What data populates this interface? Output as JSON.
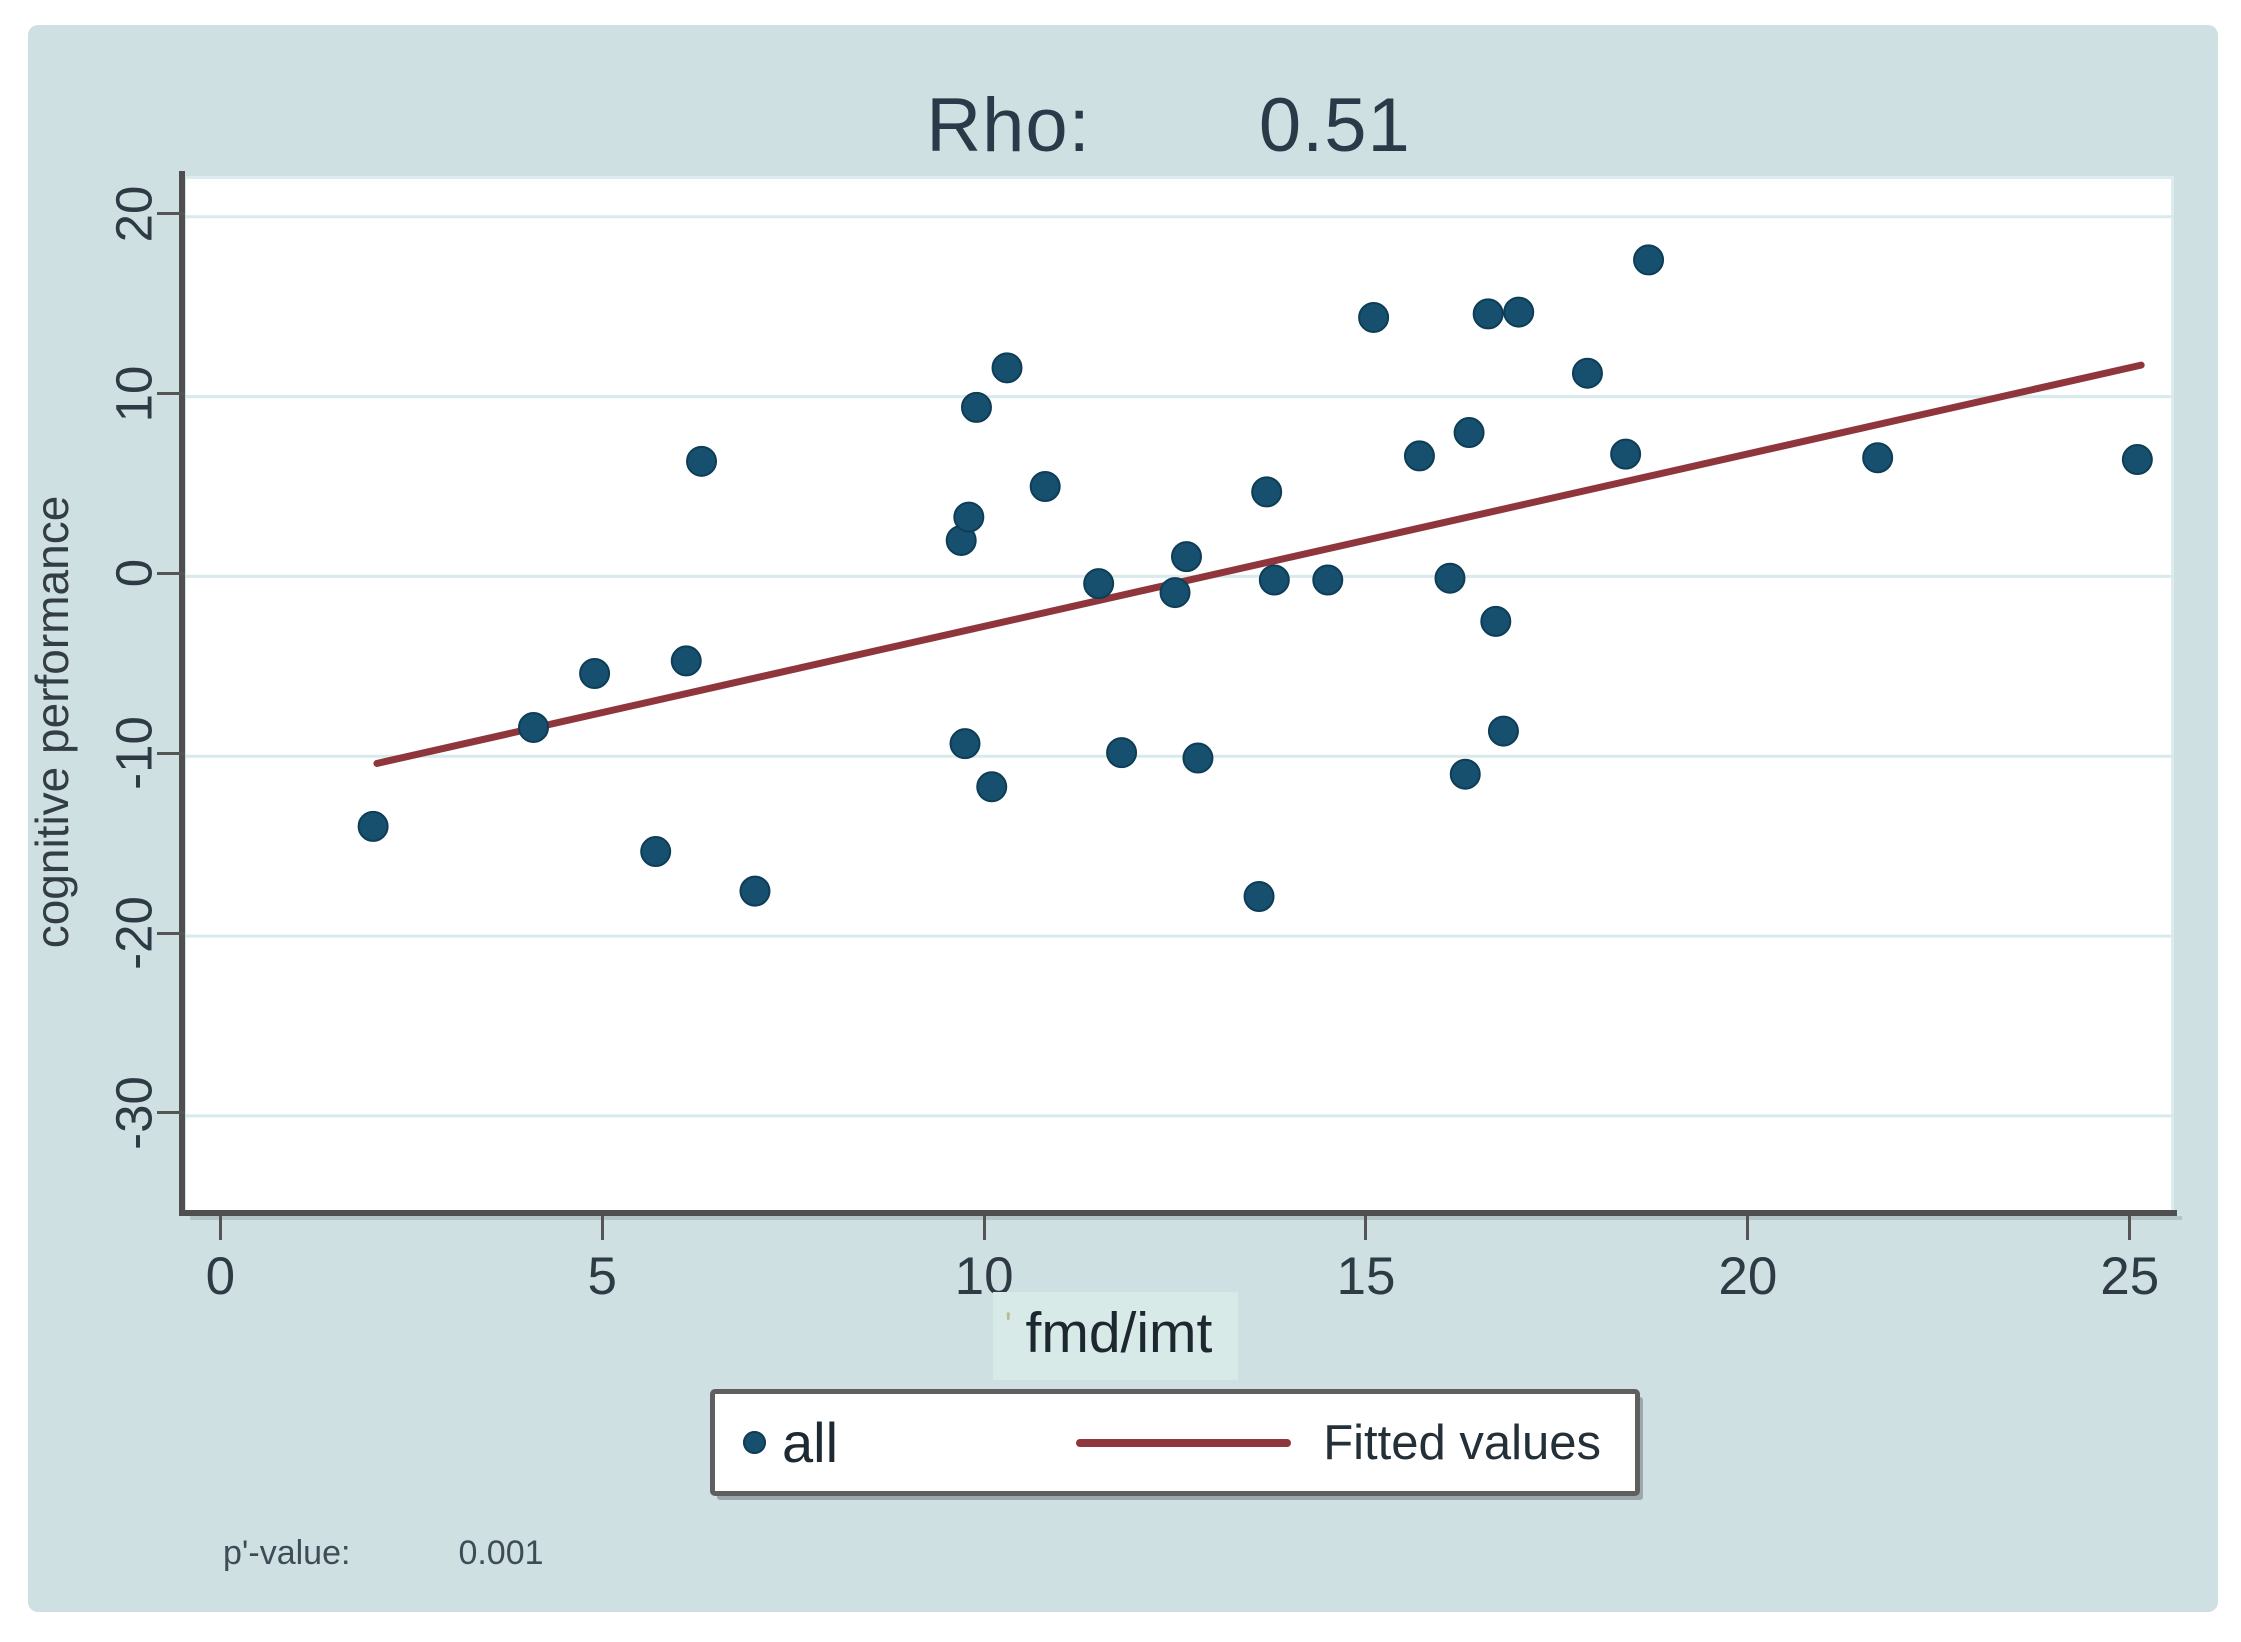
{
  "title": {
    "label": "Rho:",
    "value": "0.51"
  },
  "y_axis": {
    "label": "cognitive performance",
    "ticks": [
      20,
      10,
      0,
      -10,
      -20,
      -30
    ]
  },
  "x_axis": {
    "label": "fmd/imt",
    "label_prefix_mark": "'",
    "ticks": [
      0,
      5,
      10,
      15,
      20,
      25
    ]
  },
  "legend": {
    "entries": [
      {
        "label": "all",
        "marker": "dot",
        "color": "#174f6e"
      },
      {
        "label": "Fitted values",
        "marker": "line",
        "color": "#8f353c"
      }
    ]
  },
  "footer": {
    "label": "p'-value:",
    "value": "0.001"
  },
  "colors": {
    "panel_background": "#cfe0e2",
    "plot_background": "#ffffff",
    "gridline": "#d8eaec",
    "axis_line": "#4f4f4f",
    "tick_text": "#2e3a44",
    "title_text": "#2b3a48",
    "marker_fill": "#174f6e",
    "marker_stroke": "#0e3d57",
    "fit_line": "#8f353c",
    "xlabel_highlight": "#d8eae7"
  },
  "chart_data": {
    "type": "scatter",
    "title": "Rho: 0.51",
    "rho": 0.51,
    "p_value": 0.001,
    "xlabel": "fmd/imt",
    "ylabel": "cognitive performance",
    "xlim": [
      -0.45,
      25.58
    ],
    "ylim": [
      -35.4,
      22.1
    ],
    "x_ticks": [
      0,
      5,
      10,
      15,
      20,
      25
    ],
    "y_ticks": [
      20,
      10,
      0,
      -10,
      -20,
      -30
    ],
    "grid": "horizontal gridlines at y ticks",
    "legend_position": "bottom center",
    "series": [
      {
        "name": "all",
        "type": "scatter",
        "color": "#174f6e",
        "points": [
          [
            2.0,
            -13.9
          ],
          [
            4.1,
            -8.4
          ],
          [
            4.9,
            -5.4
          ],
          [
            5.7,
            -15.3
          ],
          [
            6.1,
            -4.7
          ],
          [
            6.3,
            6.4
          ],
          [
            7.0,
            -17.5
          ],
          [
            9.7,
            2.0
          ],
          [
            9.75,
            -9.3
          ],
          [
            9.8,
            3.3
          ],
          [
            9.9,
            9.4
          ],
          [
            10.1,
            -11.7
          ],
          [
            10.3,
            11.6
          ],
          [
            10.8,
            5.0
          ],
          [
            11.5,
            -0.4
          ],
          [
            11.8,
            -9.8
          ],
          [
            12.5,
            -0.9
          ],
          [
            12.65,
            1.1
          ],
          [
            12.8,
            -10.1
          ],
          [
            13.6,
            -17.8
          ],
          [
            13.7,
            4.7
          ],
          [
            13.8,
            -0.2
          ],
          [
            14.5,
            -0.2
          ],
          [
            15.1,
            14.4
          ],
          [
            15.7,
            6.7
          ],
          [
            16.1,
            -0.1
          ],
          [
            16.3,
            -11.0
          ],
          [
            16.35,
            8.0
          ],
          [
            16.6,
            14.6
          ],
          [
            16.7,
            -2.5
          ],
          [
            16.8,
            -8.6
          ],
          [
            17.0,
            14.7
          ],
          [
            17.9,
            11.3
          ],
          [
            18.4,
            6.8
          ],
          [
            18.7,
            17.6
          ],
          [
            21.7,
            6.6
          ],
          [
            25.1,
            6.5
          ]
        ]
      },
      {
        "name": "Fitted values",
        "type": "line",
        "color": "#8f353c",
        "x": [
          2.05,
          25.15
        ],
        "y": [
          -10.4,
          11.75
        ]
      }
    ]
  }
}
